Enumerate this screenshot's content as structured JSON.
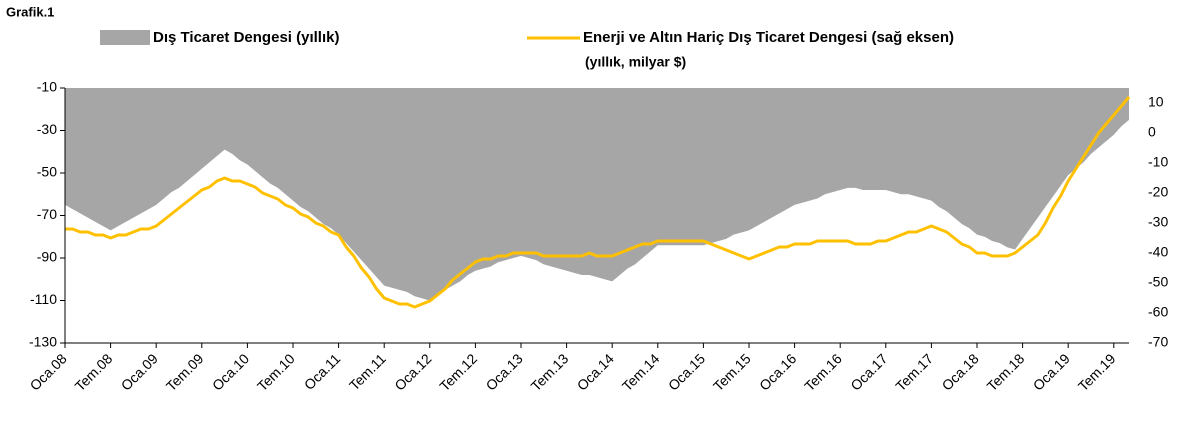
{
  "chart_data": {
    "type": "area_line",
    "title": "Grafik.1",
    "subtitle": "(yıllık, milyar $)",
    "categories": [
      "Oca.08",
      null,
      null,
      null,
      null,
      null,
      "Tem.08",
      null,
      null,
      null,
      null,
      null,
      "Oca.09",
      null,
      null,
      null,
      null,
      null,
      "Tem.09",
      null,
      null,
      null,
      null,
      null,
      "Oca.10",
      null,
      null,
      null,
      null,
      null,
      "Tem.10",
      null,
      null,
      null,
      null,
      null,
      "Oca.11",
      null,
      null,
      null,
      null,
      null,
      "Tem.11",
      null,
      null,
      null,
      null,
      null,
      "Oca.12",
      null,
      null,
      null,
      null,
      null,
      "Tem.12",
      null,
      null,
      null,
      null,
      null,
      "Oca.13",
      null,
      null,
      null,
      null,
      null,
      "Tem.13",
      null,
      null,
      null,
      null,
      null,
      "Oca.14",
      null,
      null,
      null,
      null,
      null,
      "Tem.14",
      null,
      null,
      null,
      null,
      null,
      "Oca.15",
      null,
      null,
      null,
      null,
      null,
      "Tem.15",
      null,
      null,
      null,
      null,
      null,
      "Oca.16",
      null,
      null,
      null,
      null,
      null,
      "Tem.16",
      null,
      null,
      null,
      null,
      null,
      "Oca.17",
      null,
      null,
      null,
      null,
      null,
      "Tem.17",
      null,
      null,
      null,
      null,
      null,
      "Oca.18",
      null,
      null,
      null,
      null,
      null,
      "Tem.18",
      null,
      null,
      null,
      null,
      null,
      "Oca.19",
      null,
      null,
      null,
      null,
      null,
      "Tem.19",
      null,
      null
    ],
    "series": [
      {
        "name": "Dış Ticaret Dengesi (yıllık)",
        "color": "#a6a6a6",
        "kind": "area",
        "values": [
          -65,
          -67,
          -69,
          -71,
          -73,
          -75,
          -77,
          -75,
          -73,
          -71,
          -69,
          -67,
          -65,
          -62,
          -59,
          -57,
          -54,
          -51,
          -48,
          -45,
          -42,
          -39,
          -41,
          -44,
          -46,
          -49,
          -52,
          -55,
          -57,
          -60,
          -63,
          -66,
          -68,
          -71,
          -74,
          -76,
          -79,
          -83,
          -87,
          -91,
          -95,
          -99,
          -103,
          -104,
          -105,
          -106,
          -108,
          -109,
          -110,
          -108,
          -105,
          -103,
          -101,
          -98,
          -96,
          -95,
          -94,
          -92,
          -91,
          -90,
          -89,
          -90,
          -91,
          -93,
          -94,
          -95,
          -96,
          -97,
          -98,
          -98,
          -99,
          -100,
          -101,
          -98,
          -95,
          -93,
          -90,
          -87,
          -84,
          -84,
          -84,
          -84,
          -84,
          -84,
          -84,
          -83,
          -82,
          -81,
          -79,
          -78,
          -77,
          -75,
          -73,
          -71,
          -69,
          -67,
          -65,
          -64,
          -63,
          -62,
          -60,
          -59,
          -58,
          -57,
          -57,
          -58,
          -58,
          -58,
          -58,
          -59,
          -60,
          -60,
          -61,
          -62,
          -63,
          -66,
          -68,
          -71,
          -74,
          -76,
          -79,
          -80,
          -82,
          -83,
          -85,
          -86,
          -81,
          -76,
          -71,
          -66,
          -61,
          -56,
          -51,
          -48,
          -45,
          -41,
          -38,
          -35,
          -32,
          -28,
          -25
        ]
      },
      {
        "name": "Enerji ve Altın Hariç Dış Ticaret Dengesi (sağ eksen)",
        "color": "#ffc000",
        "kind": "line",
        "axis": "y2",
        "values": [
          -32,
          -32,
          -33,
          -33,
          -34,
          -34,
          -35,
          -34,
          -34,
          -33,
          -32,
          -32,
          -31,
          -29,
          -27,
          -25,
          -23,
          -21,
          -19,
          -18,
          -16,
          -15,
          -16,
          -16,
          -17,
          -18,
          -20,
          -21,
          -22,
          -24,
          -25,
          -27,
          -28,
          -30,
          -31,
          -33,
          -34,
          -38,
          -41,
          -45,
          -48,
          -52,
          -55,
          -56,
          -57,
          -57,
          -58,
          -57,
          -56,
          -54,
          -52,
          -49,
          -47,
          -45,
          -43,
          -42,
          -42,
          -41,
          -41,
          -40,
          -40,
          -40,
          -40,
          -41,
          -41,
          -41,
          -41,
          -41,
          -41,
          -40,
          -41,
          -41,
          -41,
          -40,
          -39,
          -38,
          -37,
          -37,
          -36,
          -36,
          -36,
          -36,
          -36,
          -36,
          -36,
          -37,
          -38,
          -39,
          -40,
          -41,
          -42,
          -41,
          -40,
          -39,
          -38,
          -38,
          -37,
          -37,
          -37,
          -36,
          -36,
          -36,
          -36,
          -36,
          -37,
          -37,
          -37,
          -36,
          -36,
          -35,
          -34,
          -33,
          -33,
          -32,
          -31,
          -32,
          -33,
          -35,
          -37,
          -38,
          -40,
          -40,
          -41,
          -41,
          -41,
          -40,
          -38,
          -36,
          -34,
          -30,
          -25,
          -21,
          -16,
          -12,
          -8,
          -4,
          0,
          3,
          6,
          9,
          12
        ]
      }
    ],
    "ylim": [
      -130,
      -10
    ],
    "yticks": [
      -10,
      -30,
      -50,
      -70,
      -90,
      -110,
      -130
    ],
    "y2lim": [
      -70,
      15
    ],
    "y2ticks": [
      10,
      0,
      -10,
      -20,
      -30,
      -40,
      -50,
      -60,
      -70
    ],
    "grid": false
  }
}
